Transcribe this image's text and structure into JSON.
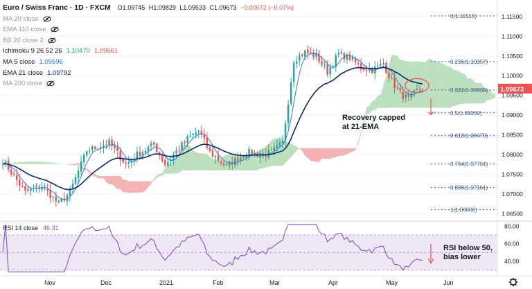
{
  "header": {
    "title": "Euro / Swiss Franc · 1D · FXCM",
    "ohlc": [
      "O1.09745",
      "H1.09829",
      "L1.09533",
      "C1.09673",
      "−0.00072 (−0.07%)"
    ]
  },
  "indicators": [
    {
      "label": "MA 20 close",
      "value": "",
      "hidden": true
    },
    {
      "label": "EMA 110 close",
      "value": "",
      "hidden": true
    },
    {
      "label": "BB 20 close 2",
      "value": "",
      "hidden": true
    },
    {
      "label": "Ichimoku 9 26 52 26",
      "value": "1.10470",
      "value2": "1.09561",
      "hidden": false
    },
    {
      "label": "MA 5 close",
      "value": "1.09596",
      "hidden": false
    },
    {
      "label": "EMA 21 close",
      "value": "1.09792",
      "hidden": false
    },
    {
      "label": "MA 200 close",
      "value": "",
      "hidden": true
    }
  ],
  "colors": {
    "bull": "#26a69a",
    "bear": "#ef5350",
    "ema": "#0b2a6b",
    "ma5": "#2f7bdc",
    "cloud_green": "#a5d6a7",
    "cloud_red": "#ef9a9a",
    "fib": "#3d5a80",
    "rsi": "#7e57c2",
    "rsi_band": "#ede7f6",
    "price_tag": "#ef5350",
    "annotation": "#ef5350"
  },
  "chart_data": {
    "type": "candlestick",
    "y_axis": {
      "ticks": [
        "1.11500",
        "1.11000",
        "1.10500",
        "1.10000",
        "1.09500",
        "1.09000",
        "1.08500",
        "1.08000",
        "1.07500",
        "1.07000",
        "1.06500"
      ],
      "tick_values": [
        1.115,
        1.11,
        1.105,
        1.1,
        1.095,
        1.09,
        1.085,
        1.08,
        1.075,
        1.07,
        1.065
      ],
      "range": [
        1.064,
        1.1185
      ]
    },
    "last_price": "1.09673",
    "x_axis": {
      "labels": [
        "Nov",
        "Dec",
        "2021",
        "Feb",
        "Mar",
        "Apr",
        "May",
        "Jun"
      ]
    },
    "fib_levels": [
      {
        "label": "0(1.11518)",
        "value": 1.11518
      },
      {
        "label": "0.236(1.10357)",
        "value": 1.10357
      },
      {
        "label": "0.382(1.09639)",
        "value": 1.09639
      },
      {
        "label": "0.5(1.09059)",
        "value": 1.09059
      },
      {
        "label": "0.618(1.08479)",
        "value": 1.08479
      },
      {
        "label": "0.764(1.07761)",
        "value": 1.07761
      },
      {
        "label": "0.886(1.07161)",
        "value": 1.07161
      },
      {
        "label": "1(1.06600)",
        "value": 1.066
      }
    ],
    "ema21_label": "Recovery capped\nat 21-EMA",
    "rsi": {
      "label": "RSI 14 close",
      "value": "46.31",
      "ticks": [
        "80.00",
        "60.00",
        "40.00"
      ],
      "tick_values": [
        80,
        60,
        40
      ],
      "range": [
        25,
        85
      ],
      "band": [
        30,
        70
      ],
      "annotation": "RSI below 50,\nbias lower"
    }
  }
}
